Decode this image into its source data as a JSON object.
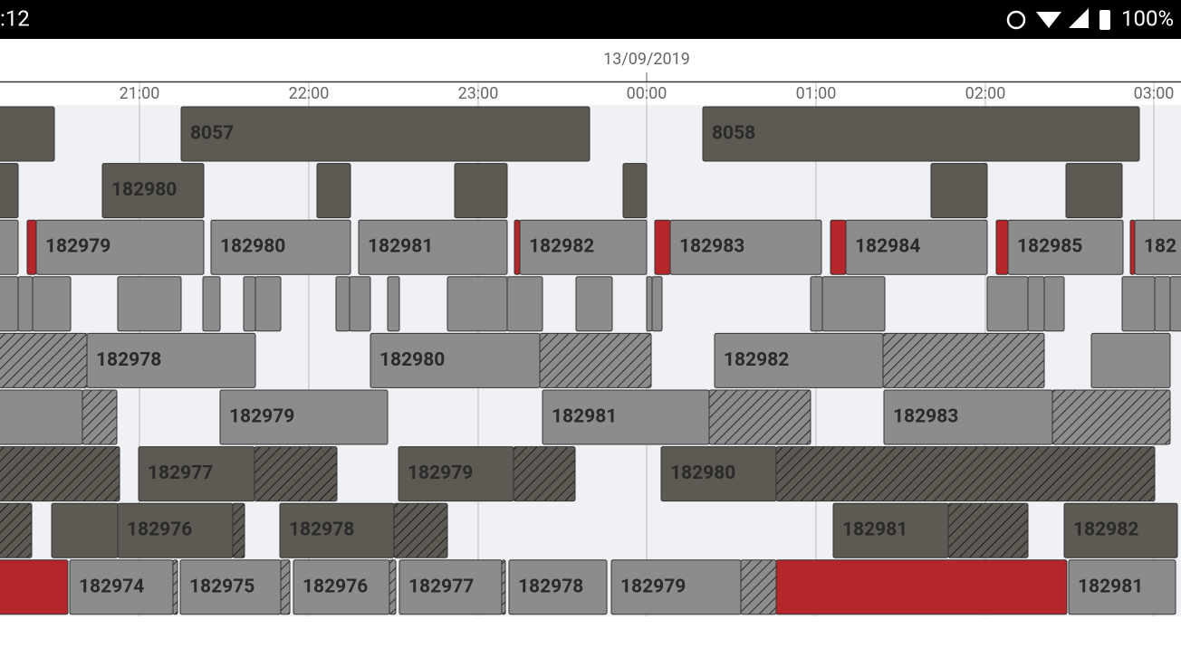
{
  "status_bar": {
    "time": ":12",
    "battery": "100%"
  },
  "timeline": {
    "date": "13/09/2019",
    "hours": [
      "21:00",
      "22:00",
      "23:00",
      "00:00",
      "01:00",
      "02:00",
      "03:00"
    ]
  },
  "rows": [
    [
      "8057",
      "8058"
    ],
    [
      "182980"
    ],
    [
      "182979",
      "182980",
      "182981",
      "182982",
      "182983",
      "182984",
      "182985",
      "182"
    ],
    [],
    [
      "182978",
      "182980",
      "182982"
    ],
    [
      "182979",
      "182981",
      "182983"
    ],
    [
      "182977",
      "182979",
      "182980"
    ],
    [
      "182976",
      "182978",
      "182981",
      "182982"
    ],
    [
      "182974",
      "182975",
      "182976",
      "182977",
      "182978",
      "182979",
      "182981"
    ]
  ]
}
